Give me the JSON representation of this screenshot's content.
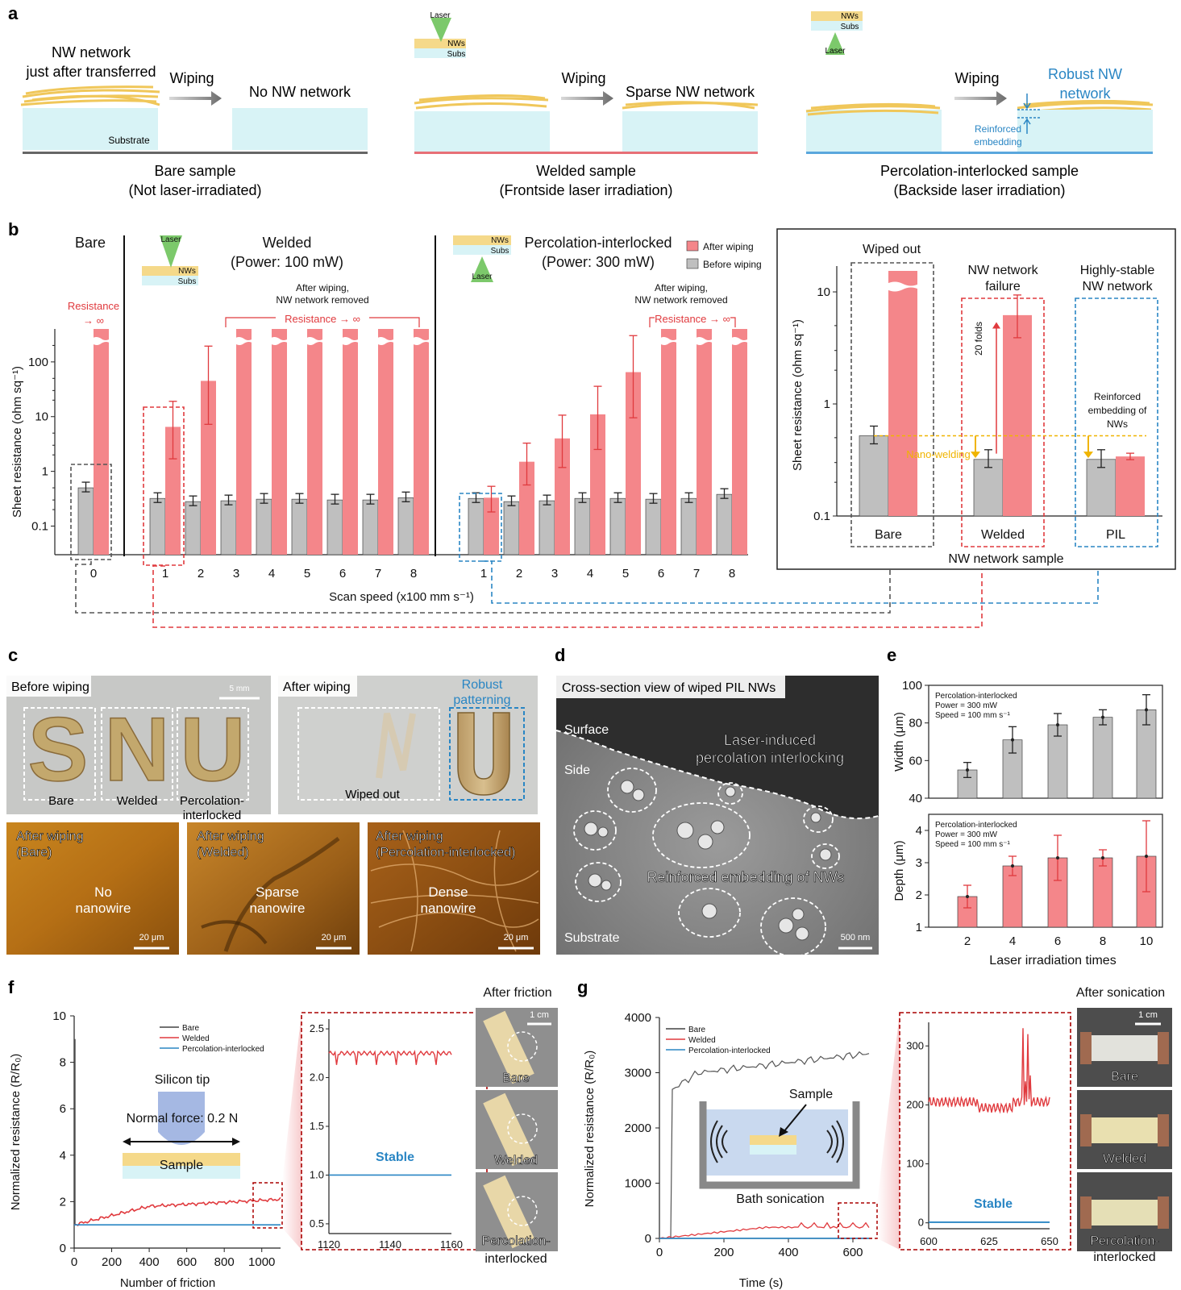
{
  "panel_letters": {
    "a": "a",
    "b": "b",
    "c": "c",
    "d": "d",
    "e": "e",
    "f": "f",
    "g": "g"
  },
  "panel_a": {
    "bare": {
      "nw_label_1": "NW network",
      "nw_label_2": "just after transferred",
      "substrate": "Substrate",
      "wiping": "Wiping",
      "result": "No NW network",
      "caption_1": "Bare sample",
      "caption_2": "(Not laser-irradiated)"
    },
    "welded": {
      "laser": "Laser",
      "nws": "NWs",
      "subs": "Subs",
      "wiping": "Wiping",
      "result": "Sparse NW network",
      "caption_1": "Welded sample",
      "caption_2": "(Frontside laser irradiation)"
    },
    "pil": {
      "nws": "NWs",
      "subs": "Subs",
      "laser": "Laser",
      "wiping": "Wiping",
      "result_1": "Robust NW",
      "result_2": "network",
      "reinforced_1": "Reinforced",
      "reinforced_2": "embedding",
      "caption_1": "Percolation-interlocked sample",
      "caption_2": "(Backside laser irradiation)"
    }
  },
  "panel_b": {
    "group_bare": "Bare",
    "group_welded_1": "Welded",
    "group_welded_2": "(Power: 100 mW)",
    "group_pil_1": "Percolation-interlocked",
    "group_pil_2": "(Power: 300 mW)",
    "legend_after": "After wiping",
    "legend_before": "Before wiping",
    "resistance_inf": "Resistance",
    "resistance_arrow": "→ ∞",
    "resistance_inf_full": "Resistance → ∞",
    "after_wiping_1": "After wiping,",
    "after_wiping_2": "NW network removed",
    "ylabel": "Sheet resistance (ohm sq⁻¹)",
    "xlabel": "Scan speed (x100 mm s⁻¹)",
    "icon_laser": "Laser",
    "icon_nws": "NWs",
    "icon_subs": "Subs",
    "inset": {
      "col_bare_title": "Wiped out",
      "col_welded_title_1": "NW network",
      "col_welded_title_2": "failure",
      "col_pil_title_1": "Highly-stable",
      "col_pil_title_2": "NW network",
      "fold": "20 folds",
      "nano_welding": "Nano-welding",
      "reinforced_1": "Reinforced",
      "reinforced_2": "embedding of",
      "reinforced_3": "NWs",
      "cat_bare": "Bare",
      "cat_welded": "Welded",
      "cat_pil": "PIL",
      "xlabel": "NW network sample",
      "ylabel": "Sheet resistance (ohm sq⁻¹)"
    }
  },
  "chart_data": [
    {
      "type": "bar",
      "panel": "b",
      "ylabel": "Sheet resistance (ohm sq-1)",
      "xlabel": "Scan speed (x100 mm s-1)",
      "yscale": "log",
      "yticks": [
        0.1,
        1,
        10,
        100
      ],
      "groups": [
        {
          "name": "Bare",
          "x": [
            0
          ],
          "before": [
            0.5
          ],
          "after": [
            "inf"
          ]
        },
        {
          "name": "Welded (Power: 100 mW)",
          "x": [
            1,
            2,
            3,
            4,
            5,
            6,
            7,
            8
          ],
          "before": [
            0.32,
            0.28,
            0.29,
            0.31,
            0.31,
            0.3,
            0.3,
            0.33
          ],
          "after": [
            6.5,
            45,
            "inf",
            "inf",
            "inf",
            "inf",
            "inf",
            "inf"
          ]
        },
        {
          "name": "Percolation-interlocked (Power: 300 mW)",
          "x": [
            1,
            2,
            3,
            4,
            5,
            6,
            7,
            8
          ],
          "before": [
            0.32,
            0.28,
            0.29,
            0.32,
            0.32,
            0.31,
            0.32,
            0.38
          ],
          "after": [
            0.33,
            1.5,
            4,
            11,
            65,
            "inf",
            "inf",
            "inf"
          ]
        }
      ],
      "legend": [
        "After wiping",
        "Before wiping"
      ],
      "colors": {
        "after": "#f4868a",
        "before": "#bfbfbf"
      }
    },
    {
      "type": "bar",
      "panel": "b-inset",
      "ylabel": "Sheet resistance (ohm sq-1)",
      "xlabel": "NW network sample",
      "yscale": "log",
      "yticks": [
        0.1,
        1,
        10
      ],
      "categories": [
        "Bare",
        "Welded",
        "PIL"
      ],
      "before": [
        0.52,
        0.32,
        0.32
      ],
      "after": [
        "inf",
        6.2,
        0.34
      ]
    },
    {
      "type": "bar",
      "panel": "e-top",
      "ylabel": "Width (μm)",
      "ylim": [
        40,
        100
      ],
      "yticks": [
        40,
        60,
        80,
        100
      ],
      "categories": [
        "2",
        "4",
        "6",
        "8",
        "10"
      ],
      "values": [
        55,
        71,
        79,
        83,
        87
      ],
      "errors": [
        4,
        7,
        6,
        4,
        8
      ],
      "annotation": [
        "Percolation-interlocked",
        "Power = 300 mW",
        "Speed = 100 mm s⁻¹"
      ]
    },
    {
      "type": "bar",
      "panel": "e-bottom",
      "ylabel": "Depth (μm)",
      "xlabel": "Laser irradiation times",
      "ylim": [
        1,
        4.5
      ],
      "yticks": [
        1,
        2,
        3,
        4
      ],
      "categories": [
        "2",
        "4",
        "6",
        "8",
        "10"
      ],
      "values": [
        1.95,
        2.9,
        3.15,
        3.15,
        3.2
      ],
      "errors": [
        0.35,
        0.3,
        0.7,
        0.25,
        1.1
      ],
      "annotation": [
        "Percolation-interlocked",
        "Power = 300 mW",
        "Speed = 100 mm s⁻¹"
      ]
    },
    {
      "type": "line",
      "panel": "f",
      "ylabel": "Normalized resistance (R/R₀)",
      "xlabel": "Number of friction",
      "xlim": [
        0,
        1100
      ],
      "ylim": [
        0,
        10
      ],
      "xticks": [
        0,
        200,
        400,
        600,
        800,
        1000
      ],
      "yticks": [
        0,
        2,
        4,
        6,
        8,
        10
      ],
      "series": [
        {
          "name": "Bare",
          "x": [
            0,
            5,
            5
          ],
          "y": [
            1,
            1,
            9
          ]
        },
        {
          "name": "Welded",
          "x": [
            0,
            100,
            200,
            300,
            400,
            500,
            600,
            700,
            800,
            900,
            1000,
            1100
          ],
          "y": [
            1,
            1.15,
            1.4,
            1.6,
            1.75,
            1.8,
            1.82,
            1.85,
            1.88,
            1.9,
            2.0,
            2.1
          ]
        },
        {
          "name": "Percolation-interlocked",
          "x": [
            0,
            1100
          ],
          "y": [
            1,
            1
          ]
        }
      ],
      "inset": {
        "xlim": [
          1120,
          1160
        ],
        "ylim": [
          0.4,
          2.6
        ],
        "xticks": [
          1120,
          1140,
          1160
        ],
        "yticks": [
          0.5,
          1.0,
          1.5,
          2.0,
          2.5
        ],
        "welded": 2.25,
        "pil": 1.0
      }
    },
    {
      "type": "line",
      "panel": "g",
      "ylabel": "Normalized resistance (R/R₀)",
      "xlabel": "Time (s)",
      "xlim": [
        0,
        660
      ],
      "ylim": [
        0,
        4000
      ],
      "xticks": [
        0,
        200,
        400,
        600
      ],
      "yticks": [
        0,
        1000,
        2000,
        3000,
        4000
      ],
      "series": [
        {
          "name": "Bare",
          "x": [
            0,
            35,
            40,
            60,
            100,
            200,
            300,
            400,
            500,
            600,
            650
          ],
          "y": [
            1,
            1,
            2700,
            2900,
            3000,
            3100,
            3150,
            3200,
            3250,
            3300,
            3350
          ]
        },
        {
          "name": "Welded",
          "x": [
            0,
            100,
            200,
            300,
            400,
            500,
            600,
            650
          ],
          "y": [
            1,
            60,
            100,
            130,
            180,
            200,
            210,
            200
          ]
        },
        {
          "name": "Percolation-interlocked",
          "x": [
            0,
            650
          ],
          "y": [
            1,
            1
          ]
        }
      ],
      "inset": {
        "xlim": [
          600,
          650
        ],
        "ylim": [
          -10,
          340
        ],
        "xticks": [
          600,
          625,
          650
        ],
        "yticks": [
          0,
          100,
          200,
          300
        ],
        "welded_baseline": 205,
        "pil": 1
      }
    }
  ],
  "panel_c": {
    "before_wiping": "Before wiping",
    "scale_5mm": "5 mm",
    "letters": [
      "S",
      "N",
      "U"
    ],
    "bare": "Bare",
    "welded": "Welded",
    "pil_1": "Percolation-",
    "pil_2": "interlocked",
    "after_wiping": "After wiping",
    "robust_1": "Robust",
    "robust_2": "patterning",
    "wiped_out": "Wiped out",
    "afm": [
      {
        "title_1": "After wiping",
        "title_2": "(Bare)",
        "center_1": "No",
        "center_2": "nanowire",
        "scale": "20 μm"
      },
      {
        "title_1": "After wiping",
        "title_2": "(Welded)",
        "center_1": "Sparse",
        "center_2": "nanowire",
        "scale": "20 μm"
      },
      {
        "title_1": "After wiping",
        "title_2": "(Percolation-interlocked)",
        "center_1": "Dense",
        "center_2": "nanowire",
        "scale": "20 μm"
      }
    ]
  },
  "panel_d": {
    "title": "Cross-section view of wiped PIL NWs",
    "surface": "Surface",
    "side": "Side",
    "substrate": "Substrate",
    "laser_1": "Laser-induced",
    "laser_2": "percolation interlocking",
    "reinforced": "Reinforced embedding of NWs",
    "scale": "500 nm"
  },
  "panel_e": {
    "annot_1": "Percolation-interlocked",
    "annot_2": "Power = 300 mW",
    "annot_3": "Speed = 100 mm s⁻¹",
    "ylabel_top": "Width (μm)",
    "ylabel_bottom": "Depth (μm)",
    "xlabel": "Laser irradiation times"
  },
  "panel_f": {
    "legend": [
      "Bare",
      "Welded",
      "Percolation-interlocked"
    ],
    "silicon_tip": "Silicon tip",
    "normal_force": "Normal force: 0.2 N",
    "sample": "Sample",
    "stable": "Stable",
    "after_friction": "After friction",
    "scale": "1 cm",
    "photo_labels": [
      "Bare",
      "Welded",
      "Percolation-",
      "interlocked"
    ],
    "ylabel": "Normalized resistance (R/R₀)",
    "xlabel": "Number of friction"
  },
  "panel_g": {
    "legend": [
      "Bare",
      "Welded",
      "Percolation-interlocked"
    ],
    "sample": "Sample",
    "bath": "Bath sonication",
    "stable": "Stable",
    "after_sonication": "After sonication",
    "scale": "1 cm",
    "photo_labels": [
      "Bare",
      "Welded",
      "Percolation-",
      "interlocked"
    ],
    "ylabel": "Normalized resistance (R/R₀)",
    "xlabel": "Time (s)"
  },
  "colors": {
    "after": "#f4868a",
    "before": "#bfbfbf",
    "red": "#e03a3e",
    "blue": "#2a86c4",
    "gray_dash": "#555555",
    "yellow": "#f5d98a",
    "cyan": "#d8f3f6",
    "nw": "#f0c75a",
    "laser": "#7cc96b"
  }
}
